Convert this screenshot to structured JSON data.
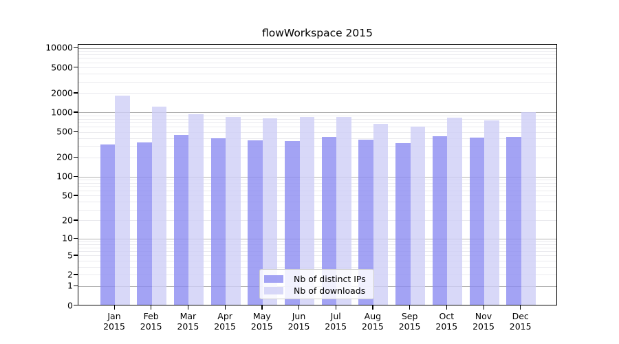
{
  "chart_data": {
    "type": "bar",
    "title": "flowWorkspace 2015",
    "year": "2015",
    "months": [
      "Jan",
      "Feb",
      "Mar",
      "Apr",
      "May",
      "Jun",
      "Jul",
      "Aug",
      "Sep",
      "Oct",
      "Nov",
      "Dec"
    ],
    "series": [
      {
        "name": "Nb of distinct IPs",
        "color": "#8c8cf1",
        "opacity": 0.8,
        "values": [
          320,
          350,
          450,
          400,
          370,
          360,
          420,
          380,
          340,
          430,
          410,
          420
        ]
      },
      {
        "name": "Nb of downloads",
        "color": "#cecef6",
        "opacity": 0.8,
        "values": [
          1850,
          1240,
          950,
          870,
          830,
          870,
          870,
          670,
          610,
          850,
          770,
          1020
        ]
      }
    ],
    "y_ticks": [
      10000,
      5000,
      2000,
      1000,
      500,
      200,
      100,
      50,
      20,
      10,
      5,
      2,
      1,
      0
    ],
    "y_scale": "log10(1+v)",
    "ylim": [
      0,
      12000
    ],
    "grid": "on",
    "grid_major_color": "#b0b0b0",
    "grid_minor_color": "#eaeaee",
    "legend_position": "lower center",
    "xlabel": "",
    "ylabel": ""
  }
}
